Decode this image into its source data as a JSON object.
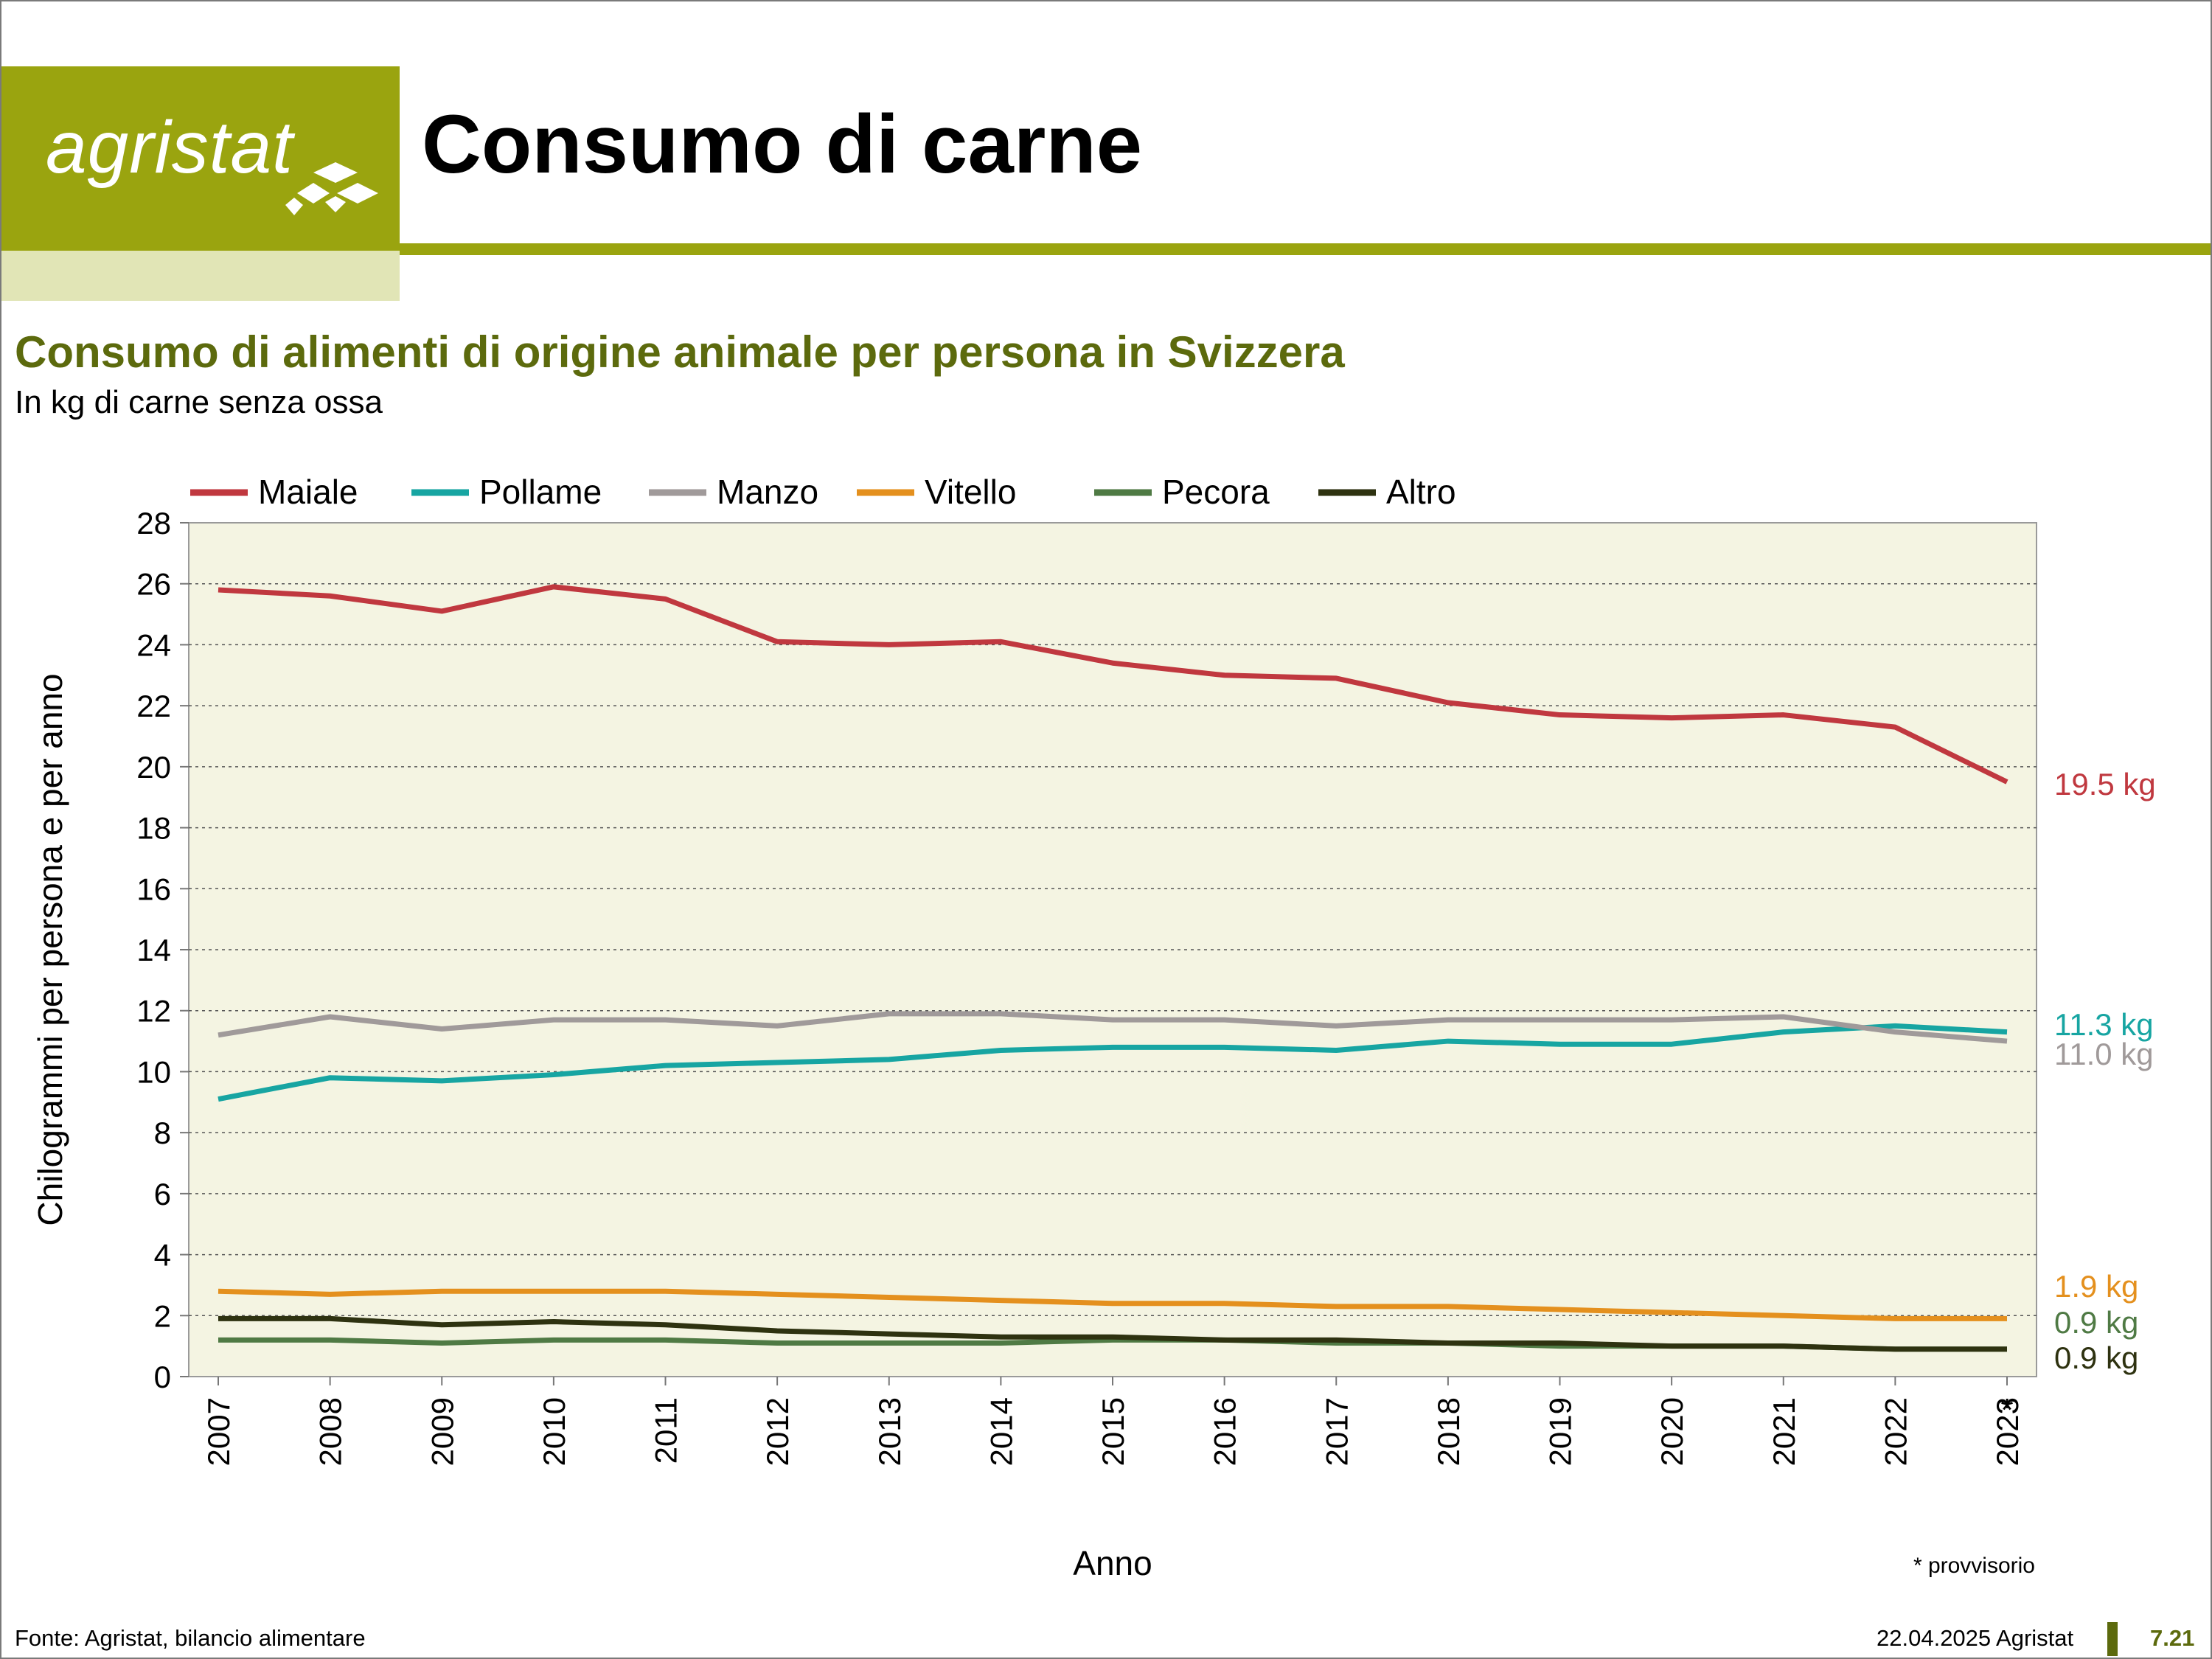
{
  "header": {
    "logo_text": "agristat",
    "title": "Consumo di carne",
    "colors": {
      "brand": "#9aa40f",
      "brand_light": "#e1e5b6",
      "heading": "#5c6a0d"
    }
  },
  "chart_data": {
    "type": "line",
    "title": "Consumo di alimenti di origine animale per persona in Svizzera",
    "subtitle": "In kg di carne senza ossa",
    "xlabel": "Anno",
    "ylabel": "Chilogrammi per persona e per anno",
    "x": [
      "2007",
      "2008",
      "2009",
      "2010",
      "2011",
      "2012",
      "2013",
      "2014",
      "2015",
      "2016",
      "2017",
      "2018",
      "2019",
      "2020",
      "2021",
      "2022",
      "2023"
    ],
    "x_markers": {
      "2023": "*"
    },
    "ylim": [
      0,
      28
    ],
    "yticks": [
      "0",
      "2",
      "4",
      "6",
      "8",
      "10",
      "12",
      "14",
      "16",
      "18",
      "20",
      "22",
      "24",
      "26",
      "28"
    ],
    "grid": "horizontal dotted",
    "legend": "top",
    "plot_background": "#f4f4e2",
    "series": [
      {
        "name": "Maiale",
        "color": "#c0383f",
        "end_label": "19.5 kg",
        "values": [
          25.8,
          25.6,
          25.1,
          25.9,
          25.5,
          24.1,
          24.0,
          24.1,
          23.4,
          23.0,
          22.9,
          22.1,
          21.7,
          21.6,
          21.7,
          21.3,
          19.5
        ]
      },
      {
        "name": "Pollame",
        "color": "#17a5a2",
        "end_label": "11.3 kg",
        "values": [
          9.1,
          9.8,
          9.7,
          9.9,
          10.2,
          10.3,
          10.4,
          10.7,
          10.8,
          10.8,
          10.7,
          11.0,
          10.9,
          10.9,
          11.3,
          11.5,
          11.3
        ]
      },
      {
        "name": "Manzo",
        "color": "#a09a9a",
        "end_label": "11.0 kg",
        "values": [
          11.2,
          11.8,
          11.4,
          11.7,
          11.7,
          11.5,
          11.9,
          11.9,
          11.7,
          11.7,
          11.5,
          11.7,
          11.7,
          11.7,
          11.8,
          11.3,
          11.0
        ]
      },
      {
        "name": "Vitello",
        "color": "#e4901e",
        "end_label": "1.9 kg",
        "values": [
          2.8,
          2.7,
          2.8,
          2.8,
          2.8,
          2.7,
          2.6,
          2.5,
          2.4,
          2.4,
          2.3,
          2.3,
          2.2,
          2.1,
          2.0,
          1.9,
          1.9
        ]
      },
      {
        "name": "Pecora",
        "color": "#4f7a44",
        "end_label": "0.9 kg",
        "values": [
          1.2,
          1.2,
          1.1,
          1.2,
          1.2,
          1.1,
          1.1,
          1.1,
          1.2,
          1.2,
          1.1,
          1.1,
          1.0,
          1.0,
          1.0,
          0.9,
          0.9
        ]
      },
      {
        "name": "Altro",
        "color": "#2e3210",
        "end_label": "0.9 kg",
        "values": [
          1.9,
          1.9,
          1.7,
          1.8,
          1.7,
          1.5,
          1.4,
          1.3,
          1.3,
          1.2,
          1.2,
          1.1,
          1.1,
          1.0,
          1.0,
          0.9,
          0.9
        ]
      }
    ]
  },
  "notes": {
    "provisional": "* provvisorio"
  },
  "footer": {
    "source": "Fonte: Agristat, bilancio alimentare",
    "date_org": "22.04.2025 Agristat",
    "page_number": "7.21"
  }
}
